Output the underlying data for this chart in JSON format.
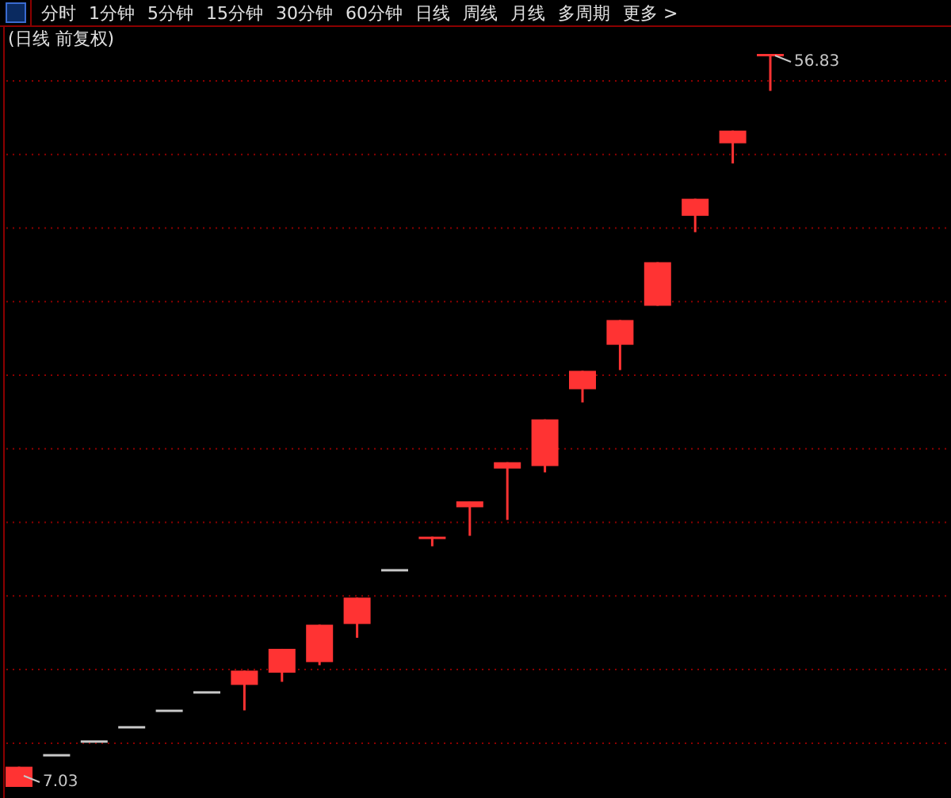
{
  "chart_data": {
    "type": "candlestick",
    "title": "(日线 前复权)",
    "categories": [
      null,
      null,
      null,
      null,
      null,
      null,
      null,
      null,
      null,
      null,
      null,
      null,
      null,
      null,
      null,
      null,
      null,
      null,
      null,
      null,
      null
    ],
    "ohlc": [
      [
        7.03,
        8.4,
        7.03,
        8.4
      ],
      [
        9.26,
        9.26,
        9.26,
        9.26
      ],
      [
        10.19,
        10.19,
        10.19,
        10.19
      ],
      [
        11.16,
        11.16,
        11.16,
        11.16
      ],
      [
        12.28,
        12.28,
        12.28,
        12.28
      ],
      [
        13.53,
        13.53,
        13.53,
        13.53
      ],
      [
        13.96,
        14.93,
        12.23,
        14.93
      ],
      [
        14.79,
        16.41,
        14.17,
        16.41
      ],
      [
        15.51,
        18.05,
        15.3,
        18.05
      ],
      [
        18.1,
        19.89,
        17.16,
        19.89
      ],
      [
        21.83,
        21.83,
        21.83,
        21.83
      ],
      [
        24.03,
        24.03,
        23.38,
        24.03
      ],
      [
        26.03,
        26.43,
        24.09,
        26.43
      ],
      [
        28.66,
        29.09,
        25.17,
        29.09
      ],
      [
        28.83,
        32.0,
        28.4,
        32.0
      ],
      [
        34.05,
        35.3,
        33.15,
        35.3
      ],
      [
        37.07,
        38.75,
        35.35,
        38.75
      ],
      [
        39.72,
        42.68,
        39.72,
        42.68
      ],
      [
        45.83,
        46.99,
        44.72,
        46.99
      ],
      [
        50.76,
        51.62,
        49.39,
        51.62
      ],
      [
        56.83,
        56.83,
        54.32,
        56.83
      ]
    ],
    "colors": [
      "#ff3333",
      "#c8c8c8",
      "#c8c8c8",
      "#c8c8c8",
      "#c8c8c8",
      "#c8c8c8",
      "#ff3333",
      "#ff3333",
      "#ff3333",
      "#ff3333",
      "#c8c8c8",
      "#ff3333",
      "#ff3333",
      "#ff3333",
      "#ff3333",
      "#ff3333",
      "#ff3333",
      "#ff3333",
      "#ff3333",
      "#ff3333",
      "#ff3333"
    ],
    "grid": "y",
    "yticks": [
      {
        "value": 10,
        "label": null
      },
      {
        "value": 15,
        "label": null
      },
      {
        "value": 20,
        "label": null
      },
      {
        "value": 25,
        "label": null
      },
      {
        "value": 30,
        "label": null
      },
      {
        "value": 35,
        "label": null
      },
      {
        "value": 40,
        "label": null
      },
      {
        "value": 45,
        "label": null
      },
      {
        "value": 50,
        "label": null
      },
      {
        "value": 55,
        "label": null
      }
    ],
    "annotations": [
      "分时",
      "1分钟",
      "5分钟",
      "15分钟",
      "30分钟",
      "60分钟",
      "日线",
      "周线",
      "月线",
      "多周期",
      "更多 >",
      "56.83",
      "7.03"
    ]
  }
}
